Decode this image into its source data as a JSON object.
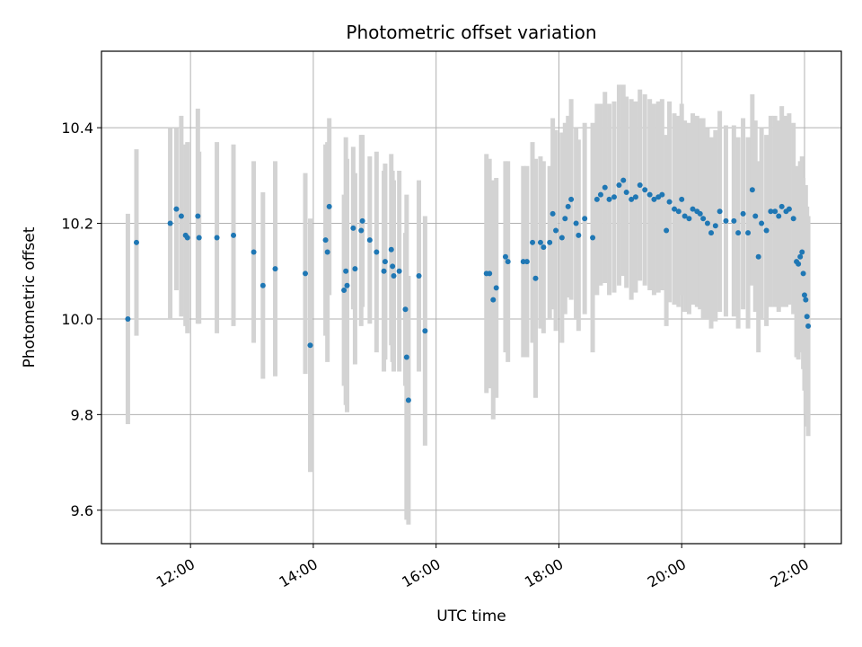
{
  "chart_data": {
    "type": "scatter",
    "title": "Photometric offset variation",
    "xlabel": "UTC time",
    "ylabel": "Photometric offset",
    "x_unit": "hours UTC",
    "xlim": [
      10.55,
      22.6
    ],
    "ylim": [
      9.53,
      10.56
    ],
    "x_ticks": [
      {
        "value": 12,
        "label": "12:00"
      },
      {
        "value": 14,
        "label": "14:00"
      },
      {
        "value": 16,
        "label": "16:00"
      },
      {
        "value": 18,
        "label": "18:00"
      },
      {
        "value": 20,
        "label": "20:00"
      },
      {
        "value": 22,
        "label": "22:00"
      }
    ],
    "y_ticks": [
      {
        "value": 9.6,
        "label": "9.6"
      },
      {
        "value": 9.8,
        "label": "9.8"
      },
      {
        "value": 10.0,
        "label": "10.0"
      },
      {
        "value": 10.2,
        "label": "10.2"
      },
      {
        "value": 10.4,
        "label": "10.4"
      }
    ],
    "grid": true,
    "colors": {
      "point": "#1f77b4",
      "errorbar": "#d3d3d3",
      "grid": "#b0b0b0"
    },
    "series": [
      {
        "points": [
          [
            10.98,
            10.0,
            0.22
          ],
          [
            11.12,
            10.16,
            0.195
          ],
          [
            11.67,
            10.2,
            0.2
          ],
          [
            11.77,
            10.23,
            0.17
          ],
          [
            11.85,
            10.215,
            0.21
          ],
          [
            11.92,
            10.175,
            0.19
          ],
          [
            11.95,
            10.17,
            0.2
          ],
          [
            12.12,
            10.215,
            0.225
          ],
          [
            12.14,
            10.17,
            0.18
          ],
          [
            12.43,
            10.17,
            0.2
          ],
          [
            12.7,
            10.175,
            0.19
          ],
          [
            13.03,
            10.14,
            0.19
          ],
          [
            13.18,
            10.07,
            0.195
          ],
          [
            13.38,
            10.105,
            0.225
          ],
          [
            13.87,
            10.095,
            0.21
          ],
          [
            13.95,
            9.945,
            0.265
          ],
          [
            14.2,
            10.165,
            0.2
          ],
          [
            14.23,
            10.14,
            0.23
          ],
          [
            14.26,
            10.235,
            0.185
          ],
          [
            14.5,
            10.06,
            0.2
          ],
          [
            14.53,
            10.1,
            0.28
          ],
          [
            14.55,
            10.07,
            0.265
          ],
          [
            14.65,
            10.19,
            0.17
          ],
          [
            14.68,
            10.105,
            0.2
          ],
          [
            14.78,
            10.185,
            0.2
          ],
          [
            14.8,
            10.205,
            0.18
          ],
          [
            14.92,
            10.165,
            0.175
          ],
          [
            15.03,
            10.14,
            0.21
          ],
          [
            15.15,
            10.1,
            0.21
          ],
          [
            15.17,
            10.12,
            0.205
          ],
          [
            15.27,
            10.145,
            0.2
          ],
          [
            15.29,
            10.11,
            0.2
          ],
          [
            15.31,
            10.09,
            0.2
          ],
          [
            15.4,
            10.1,
            0.21
          ],
          [
            15.5,
            10.02,
            0.16
          ],
          [
            15.52,
            9.92,
            0.34
          ],
          [
            15.55,
            9.83,
            0.26
          ],
          [
            15.72,
            10.09,
            0.2
          ],
          [
            15.82,
            9.975,
            0.24
          ],
          [
            16.82,
            10.095,
            0.25
          ],
          [
            16.87,
            10.095,
            0.24
          ],
          [
            16.93,
            10.04,
            0.25
          ],
          [
            16.98,
            10.065,
            0.23
          ],
          [
            17.13,
            10.13,
            0.2
          ],
          [
            17.17,
            10.12,
            0.21
          ],
          [
            17.42,
            10.12,
            0.2
          ],
          [
            17.48,
            10.12,
            0.2
          ],
          [
            17.57,
            10.16,
            0.21
          ],
          [
            17.62,
            10.085,
            0.25
          ],
          [
            17.7,
            10.16,
            0.18
          ],
          [
            17.75,
            10.15,
            0.18
          ],
          [
            17.85,
            10.16,
            0.16
          ],
          [
            17.9,
            10.22,
            0.2
          ],
          [
            17.95,
            10.185,
            0.21
          ],
          [
            18.05,
            10.17,
            0.22
          ],
          [
            18.1,
            10.21,
            0.2
          ],
          [
            18.15,
            10.235,
            0.19
          ],
          [
            18.2,
            10.25,
            0.21
          ],
          [
            18.28,
            10.2,
            0.2
          ],
          [
            18.32,
            10.175,
            0.2
          ],
          [
            18.42,
            10.21,
            0.2
          ],
          [
            18.55,
            10.17,
            0.24
          ],
          [
            18.62,
            10.25,
            0.2
          ],
          [
            18.68,
            10.26,
            0.19
          ],
          [
            18.75,
            10.275,
            0.2
          ],
          [
            18.82,
            10.25,
            0.2
          ],
          [
            18.9,
            10.255,
            0.2
          ],
          [
            18.98,
            10.28,
            0.21
          ],
          [
            19.05,
            10.29,
            0.2
          ],
          [
            19.1,
            10.265,
            0.2
          ],
          [
            19.18,
            10.25,
            0.21
          ],
          [
            19.25,
            10.255,
            0.2
          ],
          [
            19.32,
            10.28,
            0.2
          ],
          [
            19.4,
            10.27,
            0.2
          ],
          [
            19.48,
            10.26,
            0.2
          ],
          [
            19.55,
            10.25,
            0.2
          ],
          [
            19.62,
            10.255,
            0.2
          ],
          [
            19.68,
            10.26,
            0.2
          ],
          [
            19.75,
            10.185,
            0.2
          ],
          [
            19.8,
            10.245,
            0.21
          ],
          [
            19.88,
            10.23,
            0.2
          ],
          [
            19.95,
            10.225,
            0.2
          ],
          [
            20.0,
            10.25,
            0.2
          ],
          [
            20.05,
            10.215,
            0.2
          ],
          [
            20.12,
            10.21,
            0.2
          ],
          [
            20.18,
            10.23,
            0.2
          ],
          [
            20.25,
            10.225,
            0.2
          ],
          [
            20.3,
            10.22,
            0.2
          ],
          [
            20.35,
            10.21,
            0.21
          ],
          [
            20.42,
            10.2,
            0.2
          ],
          [
            20.48,
            10.18,
            0.2
          ],
          [
            20.55,
            10.195,
            0.2
          ],
          [
            20.62,
            10.225,
            0.21
          ],
          [
            20.72,
            10.205,
            0.2
          ],
          [
            20.85,
            10.205,
            0.2
          ],
          [
            20.92,
            10.18,
            0.2
          ],
          [
            21.0,
            10.22,
            0.2
          ],
          [
            21.08,
            10.18,
            0.2
          ],
          [
            21.15,
            10.27,
            0.2
          ],
          [
            21.2,
            10.215,
            0.2
          ],
          [
            21.25,
            10.13,
            0.2
          ],
          [
            21.3,
            10.2,
            0.2
          ],
          [
            21.38,
            10.185,
            0.2
          ],
          [
            21.45,
            10.225,
            0.2
          ],
          [
            21.52,
            10.225,
            0.2
          ],
          [
            21.58,
            10.215,
            0.2
          ],
          [
            21.63,
            10.235,
            0.21
          ],
          [
            21.7,
            10.225,
            0.2
          ],
          [
            21.75,
            10.23,
            0.2
          ],
          [
            21.82,
            10.21,
            0.2
          ],
          [
            21.87,
            10.12,
            0.2
          ],
          [
            21.9,
            10.115,
            0.2
          ],
          [
            21.93,
            10.13,
            0.2
          ],
          [
            21.96,
            10.14,
            0.2
          ],
          [
            21.98,
            10.095,
            0.2
          ],
          [
            22.0,
            10.05,
            0.2
          ],
          [
            22.02,
            10.04,
            0.24
          ],
          [
            22.04,
            10.005,
            0.23
          ],
          [
            22.06,
            9.985,
            0.23
          ]
        ]
      }
    ]
  }
}
